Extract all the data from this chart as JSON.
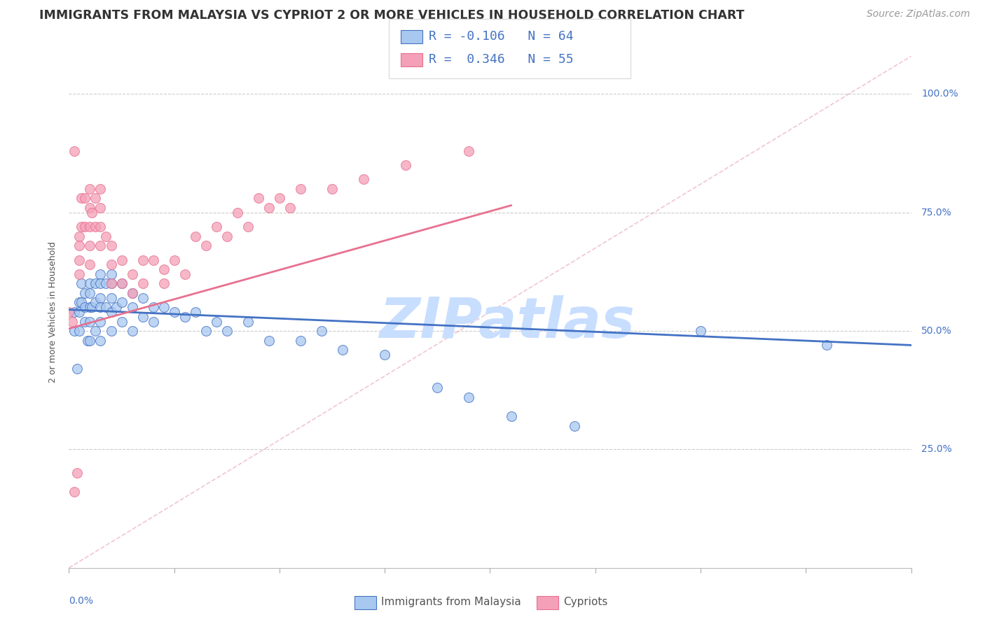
{
  "title": "IMMIGRANTS FROM MALAYSIA VS CYPRIOT 2 OR MORE VEHICLES IN HOUSEHOLD CORRELATION CHART",
  "source": "Source: ZipAtlas.com",
  "ylabel": "2 or more Vehicles in Household",
  "yticks": [
    "25.0%",
    "50.0%",
    "75.0%",
    "100.0%"
  ],
  "ytick_vals": [
    0.25,
    0.5,
    0.75,
    1.0
  ],
  "xlim": [
    0.0,
    0.08
  ],
  "ylim": [
    0.0,
    1.08
  ],
  "legend_r1": "R = -0.106",
  "legend_n1": "N = 64",
  "legend_r2": "R =  0.346",
  "legend_n2": "N = 55",
  "color_malaysia": "#A8C8F0",
  "color_cypriot": "#F4A0B8",
  "color_malaysia_line": "#4472C4",
  "color_cypriot_line": "#E87090",
  "color_dashed_line": "#E8A0B0",
  "malaysia_x": [
    0.0005,
    0.0005,
    0.0008,
    0.001,
    0.001,
    0.001,
    0.0012,
    0.0012,
    0.0015,
    0.0015,
    0.0015,
    0.0018,
    0.002,
    0.002,
    0.002,
    0.002,
    0.002,
    0.0022,
    0.0025,
    0.0025,
    0.0025,
    0.003,
    0.003,
    0.003,
    0.003,
    0.003,
    0.003,
    0.0035,
    0.0035,
    0.004,
    0.004,
    0.004,
    0.004,
    0.004,
    0.0045,
    0.005,
    0.005,
    0.005,
    0.006,
    0.006,
    0.006,
    0.007,
    0.007,
    0.008,
    0.008,
    0.009,
    0.01,
    0.011,
    0.012,
    0.013,
    0.014,
    0.015,
    0.017,
    0.019,
    0.022,
    0.024,
    0.026,
    0.03,
    0.035,
    0.038,
    0.042,
    0.048,
    0.06,
    0.072
  ],
  "malaysia_y": [
    0.54,
    0.5,
    0.42,
    0.56,
    0.54,
    0.5,
    0.6,
    0.56,
    0.58,
    0.55,
    0.52,
    0.48,
    0.6,
    0.58,
    0.55,
    0.52,
    0.48,
    0.55,
    0.6,
    0.56,
    0.5,
    0.62,
    0.6,
    0.57,
    0.55,
    0.52,
    0.48,
    0.6,
    0.55,
    0.62,
    0.6,
    0.57,
    0.54,
    0.5,
    0.55,
    0.6,
    0.56,
    0.52,
    0.58,
    0.55,
    0.5,
    0.57,
    0.53,
    0.55,
    0.52,
    0.55,
    0.54,
    0.53,
    0.54,
    0.5,
    0.52,
    0.5,
    0.52,
    0.48,
    0.48,
    0.5,
    0.46,
    0.45,
    0.38,
    0.36,
    0.32,
    0.3,
    0.5,
    0.47
  ],
  "cypriot_x": [
    0.0,
    0.0003,
    0.0005,
    0.0005,
    0.0008,
    0.001,
    0.001,
    0.001,
    0.001,
    0.0012,
    0.0012,
    0.0015,
    0.0015,
    0.002,
    0.002,
    0.002,
    0.002,
    0.002,
    0.0022,
    0.0025,
    0.0025,
    0.003,
    0.003,
    0.003,
    0.003,
    0.0035,
    0.004,
    0.004,
    0.004,
    0.005,
    0.005,
    0.006,
    0.006,
    0.007,
    0.007,
    0.008,
    0.009,
    0.009,
    0.01,
    0.011,
    0.012,
    0.013,
    0.014,
    0.015,
    0.016,
    0.017,
    0.018,
    0.019,
    0.02,
    0.021,
    0.022,
    0.025,
    0.028,
    0.032,
    0.038
  ],
  "cypriot_y": [
    0.54,
    0.52,
    0.88,
    0.16,
    0.2,
    0.7,
    0.68,
    0.65,
    0.62,
    0.78,
    0.72,
    0.78,
    0.72,
    0.8,
    0.76,
    0.72,
    0.68,
    0.64,
    0.75,
    0.78,
    0.72,
    0.8,
    0.76,
    0.72,
    0.68,
    0.7,
    0.68,
    0.64,
    0.6,
    0.65,
    0.6,
    0.62,
    0.58,
    0.65,
    0.6,
    0.65,
    0.63,
    0.6,
    0.65,
    0.62,
    0.7,
    0.68,
    0.72,
    0.7,
    0.75,
    0.72,
    0.78,
    0.76,
    0.78,
    0.76,
    0.8,
    0.8,
    0.82,
    0.85,
    0.88
  ],
  "malaysia_line_x": [
    0.0,
    0.08
  ],
  "malaysia_line_y": [
    0.545,
    0.47
  ],
  "cypriot_line_x": [
    0.0,
    0.042
  ],
  "cypriot_line_y": [
    0.505,
    0.765
  ],
  "dashed_line_x": [
    0.0,
    0.08
  ],
  "dashed_line_y": [
    0.0,
    1.08
  ],
  "watermark": "ZIPatlas",
  "watermark_color": "#C8DEFF",
  "title_fontsize": 12.5,
  "axis_label_fontsize": 9,
  "tick_fontsize": 10,
  "legend_fontsize": 13,
  "source_fontsize": 10
}
